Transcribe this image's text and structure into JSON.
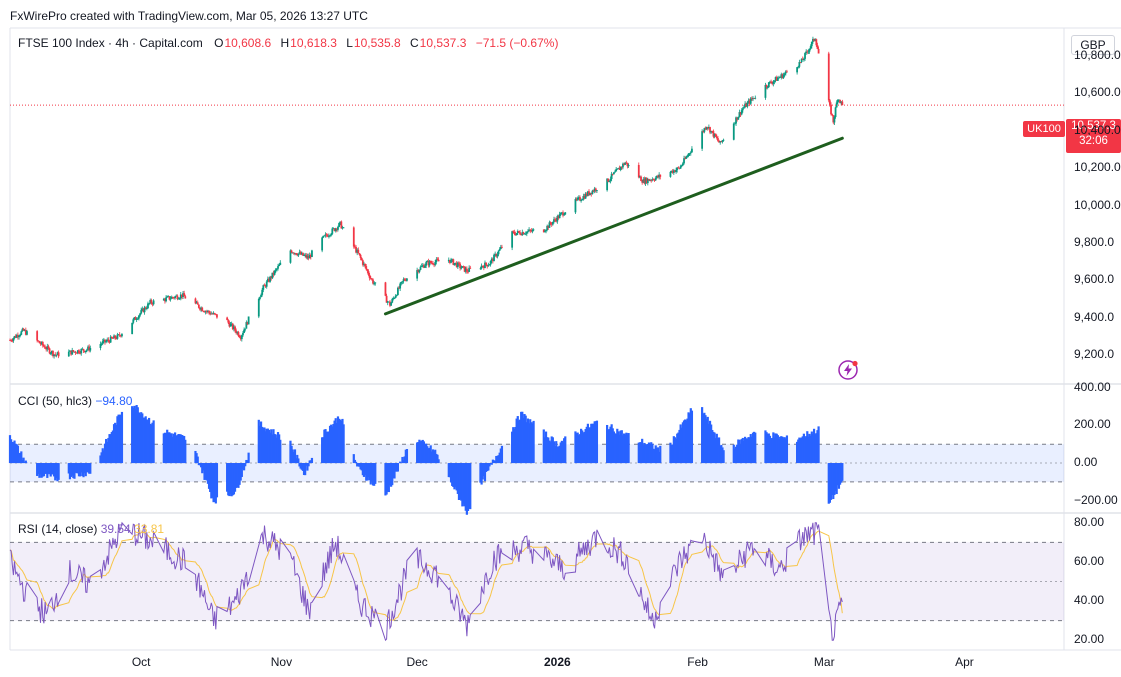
{
  "header": {
    "credit": "FxWirePro created with TradingView.com, Mar 05, 2026 13:27 UTC",
    "symbol": "FTSE 100 Index · 4h · Capital.com",
    "o_label": "O",
    "o_value": "10,608.6",
    "h_label": "H",
    "h_value": "10,618.3",
    "l_label": "L",
    "l_value": "10,535.8",
    "c_label": "C",
    "c_value": "10,537.3",
    "change": "−71.5 (−0.67%)",
    "currency": "GBP"
  },
  "price_tags": {
    "symbol": "UK100",
    "price": "10,537.3",
    "countdown": "32:06"
  },
  "colors": {
    "up": "#089981",
    "down": "#f23645",
    "trendline": "#1e5e1e",
    "cci": "#2962ff",
    "rsi": "#7e57c2",
    "rsi_ma": "#f7c548"
  },
  "icons": {
    "flash": "lightning-bolt-icon"
  },
  "chart_data": [
    {
      "type": "candlestick",
      "ylim": [
        9050,
        10950
      ],
      "yticks": [
        "10,800.0",
        "10,600.0",
        "10,400.0",
        "10,200.0",
        "10,000.0",
        "9,800.0",
        "9,600.0",
        "9,400.0",
        "9,200.0"
      ],
      "ytick_values": [
        10800,
        10600,
        10400,
        10200,
        10000,
        9800,
        9600,
        9400,
        9200
      ],
      "xticks": [
        {
          "label": "Oct",
          "bold": false
        },
        {
          "label": "Nov",
          "bold": false
        },
        {
          "label": "Dec",
          "bold": false
        },
        {
          "label": "2026",
          "bold": true
        },
        {
          "label": "Feb",
          "bold": false
        },
        {
          "label": "Mar",
          "bold": false
        },
        {
          "label": "Apr",
          "bold": false
        }
      ],
      "xtick_dates": [
        "2025-10-01",
        "2025-11-01",
        "2025-12-01",
        "2026-01-01",
        "2026-02-01",
        "2026-03-01",
        "2026-04-01"
      ],
      "x_range": [
        "2025-09-02",
        "2026-04-23"
      ],
      "key_points": [
        {
          "date": "2025-09-02",
          "close": 9280
        },
        {
          "date": "2025-09-05",
          "close": 9330
        },
        {
          "date": "2025-09-12",
          "close": 9200
        },
        {
          "date": "2025-09-19",
          "close": 9230
        },
        {
          "date": "2025-09-26",
          "close": 9300
        },
        {
          "date": "2025-10-03",
          "close": 9480
        },
        {
          "date": "2025-10-10",
          "close": 9520
        },
        {
          "date": "2025-10-15",
          "close": 9440
        },
        {
          "date": "2025-10-20",
          "close": 9380
        },
        {
          "date": "2025-10-23",
          "close": 9300
        },
        {
          "date": "2025-10-28",
          "close": 9560
        },
        {
          "date": "2025-11-03",
          "close": 9760
        },
        {
          "date": "2025-11-07",
          "close": 9720
        },
        {
          "date": "2025-11-10",
          "close": 9820
        },
        {
          "date": "2025-11-14",
          "close": 9900
        },
        {
          "date": "2025-11-18",
          "close": 9740
        },
        {
          "date": "2025-11-21",
          "close": 9600
        },
        {
          "date": "2025-11-25",
          "close": 9470
        },
        {
          "date": "2025-11-28",
          "close": 9600
        },
        {
          "date": "2025-12-03",
          "close": 9690
        },
        {
          "date": "2025-12-08",
          "close": 9710
        },
        {
          "date": "2025-12-12",
          "close": 9650
        },
        {
          "date": "2025-12-17",
          "close": 9690
        },
        {
          "date": "2025-12-22",
          "close": 9850
        },
        {
          "date": "2025-12-29",
          "close": 9870
        },
        {
          "date": "2026-01-05",
          "close": 10020
        },
        {
          "date": "2026-01-12",
          "close": 10130
        },
        {
          "date": "2026-01-16",
          "close": 10230
        },
        {
          "date": "2026-01-20",
          "close": 10130
        },
        {
          "date": "2026-01-23",
          "close": 10150
        },
        {
          "date": "2026-01-28",
          "close": 10200
        },
        {
          "date": "2026-02-03",
          "close": 10430
        },
        {
          "date": "2026-02-06",
          "close": 10330
        },
        {
          "date": "2026-02-11",
          "close": 10520
        },
        {
          "date": "2026-02-16",
          "close": 10640
        },
        {
          "date": "2026-02-20",
          "close": 10700
        },
        {
          "date": "2026-02-24",
          "close": 10770
        },
        {
          "date": "2026-02-27",
          "close": 10900
        },
        {
          "date": "2026-03-02",
          "close": 10550
        },
        {
          "date": "2026-03-03",
          "close": 10450
        },
        {
          "date": "2026-03-04",
          "close": 10580
        },
        {
          "date": "2026-03-05",
          "close": 10537
        }
      ],
      "trendline": [
        {
          "date": "2025-11-24",
          "value": 9420
        },
        {
          "date": "2026-03-05",
          "value": 10360
        }
      ],
      "last_price": 10537.3
    },
    {
      "type": "bar",
      "title": "CCI (50, hlc3)",
      "value": "−94.80",
      "ylim": [
        -260,
        420
      ],
      "yticks": [
        "400.00",
        "200.00",
        "0.00",
        "−200.00"
      ],
      "ytick_values": [
        400,
        200,
        0,
        -200
      ],
      "bands": [
        100,
        -100
      ],
      "key_points": [
        {
          "date": "2025-09-02",
          "value": 150
        },
        {
          "date": "2025-09-07",
          "value": -60
        },
        {
          "date": "2025-09-12",
          "value": -80
        },
        {
          "date": "2025-09-20",
          "value": -50
        },
        {
          "date": "2025-09-28",
          "value": 340
        },
        {
          "date": "2025-10-05",
          "value": 180
        },
        {
          "date": "2025-10-12",
          "value": 120
        },
        {
          "date": "2025-10-17",
          "value": -200
        },
        {
          "date": "2025-10-22",
          "value": -150
        },
        {
          "date": "2025-10-27",
          "value": 210
        },
        {
          "date": "2025-11-03",
          "value": 110
        },
        {
          "date": "2025-11-06",
          "value": -60
        },
        {
          "date": "2025-11-10",
          "value": 150
        },
        {
          "date": "2025-11-14",
          "value": 250
        },
        {
          "date": "2025-11-18",
          "value": -30
        },
        {
          "date": "2025-11-24",
          "value": -180
        },
        {
          "date": "2025-11-30",
          "value": 140
        },
        {
          "date": "2025-12-05",
          "value": 60
        },
        {
          "date": "2025-12-12",
          "value": -260
        },
        {
          "date": "2025-12-19",
          "value": 60
        },
        {
          "date": "2025-12-24",
          "value": 260
        },
        {
          "date": "2026-01-01",
          "value": 100
        },
        {
          "date": "2026-01-10",
          "value": 220
        },
        {
          "date": "2026-01-18",
          "value": 130
        },
        {
          "date": "2026-01-25",
          "value": 60
        },
        {
          "date": "2026-02-01",
          "value": 330
        },
        {
          "date": "2026-02-07",
          "value": 60
        },
        {
          "date": "2026-02-14",
          "value": 170
        },
        {
          "date": "2026-02-22",
          "value": 120
        },
        {
          "date": "2026-02-28",
          "value": 180
        },
        {
          "date": "2026-03-02",
          "value": -220
        },
        {
          "date": "2026-03-05",
          "value": -94.8
        }
      ]
    },
    {
      "type": "line",
      "title": "RSI (14, close)",
      "series": [
        {
          "name": "RSI",
          "value": "39.54"
        },
        {
          "name": "RSI-based MA",
          "value": "33.81"
        }
      ],
      "ylim": [
        15,
        85
      ],
      "yticks": [
        "80.00",
        "60.00",
        "40.00",
        "20.00"
      ],
      "ytick_values": [
        80,
        60,
        40,
        20
      ],
      "bands": [
        70,
        30
      ],
      "key_points": [
        {
          "date": "2025-09-02",
          "value": 60
        },
        {
          "date": "2025-09-06",
          "value": 42
        },
        {
          "date": "2025-09-10",
          "value": 33
        },
        {
          "date": "2025-09-15",
          "value": 55
        },
        {
          "date": "2025-09-20",
          "value": 48
        },
        {
          "date": "2025-09-27",
          "value": 78
        },
        {
          "date": "2025-10-05",
          "value": 68
        },
        {
          "date": "2025-10-12",
          "value": 58
        },
        {
          "date": "2025-10-17",
          "value": 30
        },
        {
          "date": "2025-10-22",
          "value": 40
        },
        {
          "date": "2025-10-28",
          "value": 74
        },
        {
          "date": "2025-11-03",
          "value": 62
        },
        {
          "date": "2025-11-07",
          "value": 35
        },
        {
          "date": "2025-11-13",
          "value": 70
        },
        {
          "date": "2025-11-18",
          "value": 40
        },
        {
          "date": "2025-11-24",
          "value": 26
        },
        {
          "date": "2025-11-30",
          "value": 62
        },
        {
          "date": "2025-12-05",
          "value": 55
        },
        {
          "date": "2025-12-12",
          "value": 28
        },
        {
          "date": "2025-12-18",
          "value": 62
        },
        {
          "date": "2025-12-25",
          "value": 68
        },
        {
          "date": "2026-01-03",
          "value": 56
        },
        {
          "date": "2026-01-10",
          "value": 74
        },
        {
          "date": "2026-01-16",
          "value": 62
        },
        {
          "date": "2026-01-22",
          "value": 30
        },
        {
          "date": "2026-01-28",
          "value": 60
        },
        {
          "date": "2026-02-02",
          "value": 74
        },
        {
          "date": "2026-02-07",
          "value": 50
        },
        {
          "date": "2026-02-13",
          "value": 68
        },
        {
          "date": "2026-02-19",
          "value": 56
        },
        {
          "date": "2026-02-24",
          "value": 72
        },
        {
          "date": "2026-02-28",
          "value": 76
        },
        {
          "date": "2026-03-02",
          "value": 30
        },
        {
          "date": "2026-03-03",
          "value": 22
        },
        {
          "date": "2026-03-05",
          "value": 39.54
        }
      ]
    }
  ]
}
